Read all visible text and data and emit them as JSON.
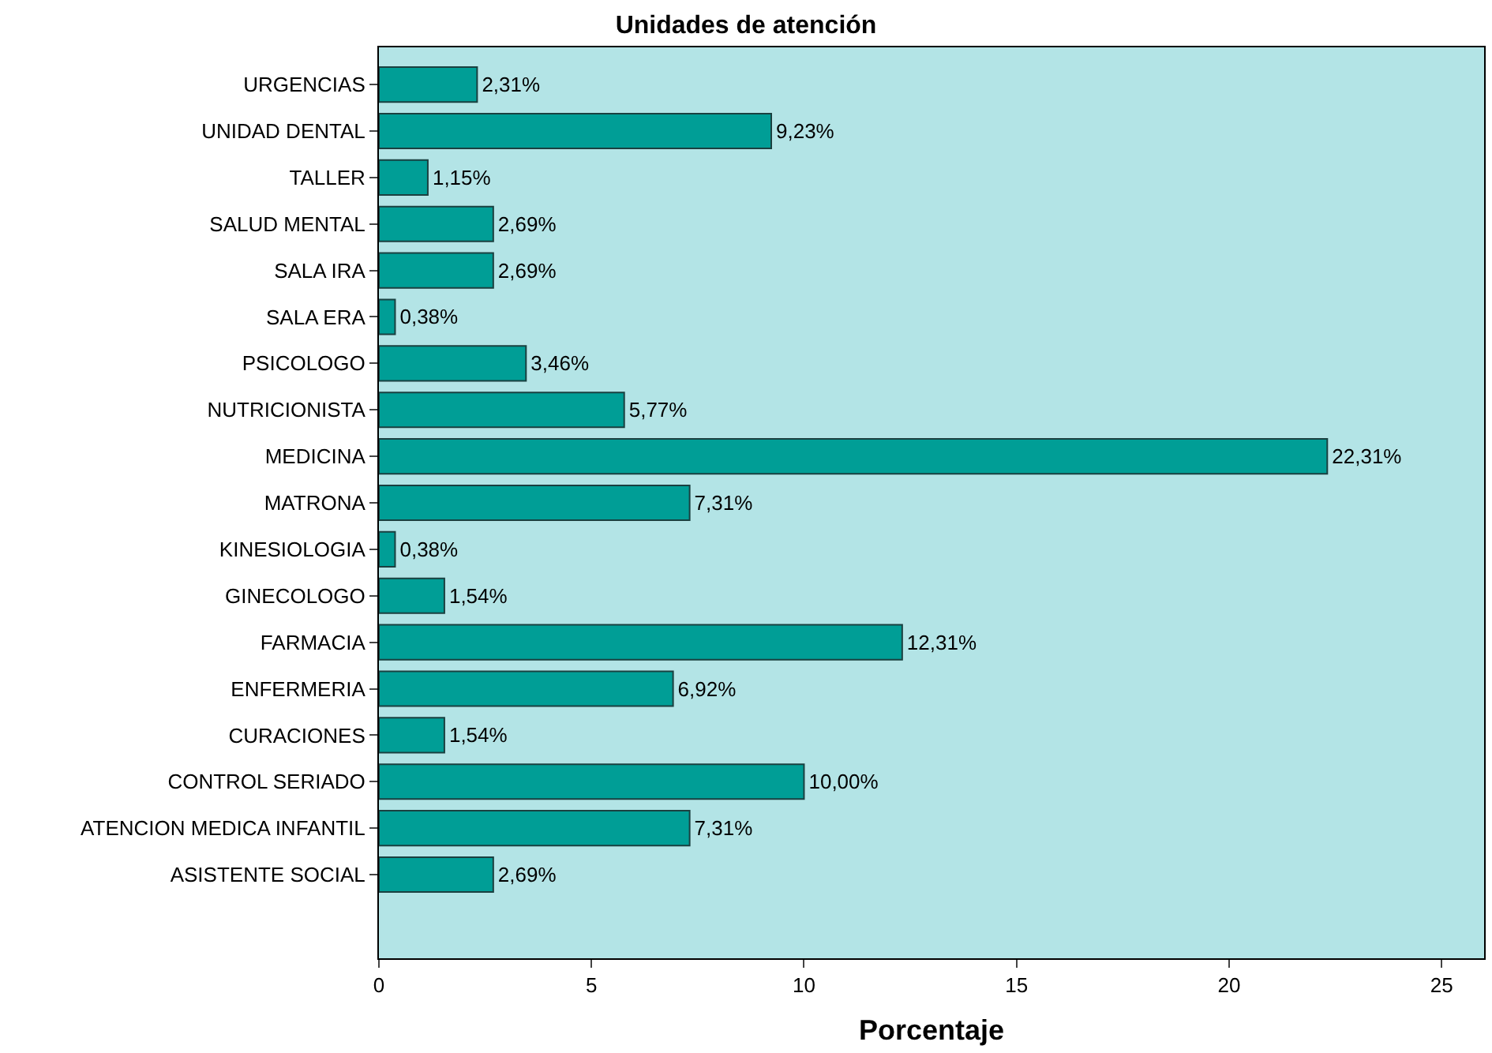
{
  "chart_data": {
    "type": "bar",
    "orientation": "horizontal",
    "title": "Unidades de atención",
    "xlabel": "Porcentaje",
    "categories": [
      "URGENCIAS",
      "UNIDAD DENTAL",
      "TALLER",
      "SALUD MENTAL",
      "SALA IRA",
      "SALA ERA",
      "PSICOLOGO",
      "NUTRICIONISTA",
      "MEDICINA",
      "MATRONA",
      "KINESIOLOGIA",
      "GINECOLOGO",
      "FARMACIA",
      "ENFERMERIA",
      "CURACIONES",
      "CONTROL SERIADO",
      "ATENCION MEDICA INFANTIL",
      "ASISTENTE SOCIAL"
    ],
    "values": [
      2.31,
      9.23,
      1.15,
      2.69,
      2.69,
      0.38,
      3.46,
      5.77,
      22.31,
      7.31,
      0.38,
      1.54,
      12.31,
      6.92,
      1.54,
      10.0,
      7.31,
      2.69
    ],
    "value_labels": [
      "2,31%",
      "9,23%",
      "1,15%",
      "2,69%",
      "2,69%",
      "0,38%",
      "3,46%",
      "5,77%",
      "22,31%",
      "7,31%",
      "0,38%",
      "1,54%",
      "12,31%",
      "6,92%",
      "1,54%",
      "10,00%",
      "7,31%",
      "2,69%"
    ],
    "color": "#009e96",
    "xlim": [
      0,
      26
    ],
    "xticks": [
      0,
      5,
      10,
      15,
      20,
      25
    ],
    "grid": false,
    "legend": false
  }
}
